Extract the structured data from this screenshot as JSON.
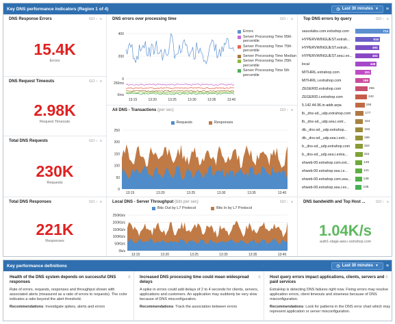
{
  "region1": {
    "title": "Key DNS performance indicators (Region 1 of 4)",
    "time_range": "Last 30 minutes"
  },
  "region2": {
    "title": "Key performance definitions",
    "time_range": "Last 30 minutes"
  },
  "ctrl_go": "GO",
  "kpis": [
    {
      "title": "DNS Response Errors",
      "value": "15.4K",
      "label": "Errors"
    },
    {
      "title": "DNS Request Timeouts",
      "value": "2.98K",
      "label": "Request Timeouts"
    },
    {
      "title": "Total DNS Requests",
      "value": "230K",
      "label": "Requests"
    },
    {
      "title": "Total DNS Responses",
      "value": "221K",
      "label": "Responses"
    }
  ],
  "errors_chart": {
    "title": "DNS errors over processing time",
    "yticks_top": [
      "400",
      "200",
      "0"
    ],
    "yticks_bottom": [
      "250ms",
      "0ms"
    ],
    "xticks": [
      "13:15",
      "13:20",
      "13:25",
      "13:30",
      "13:35",
      "13:40"
    ],
    "legend": [
      {
        "label": "Errors",
        "color": "#5b8fd0"
      },
      {
        "label": "Server Processing Time 95th percentile",
        "color": "#c76dd1"
      },
      {
        "label": "Server Processing Time 75th percentile",
        "color": "#e8664f"
      },
      {
        "label": "Server Processing Time Median",
        "color": "#a5773e"
      },
      {
        "label": "Server Processing Time 25th percentile",
        "color": "#8bb83c"
      },
      {
        "label": "Server Processing Time 5th percentile",
        "color": "#4fae5a"
      }
    ]
  },
  "transactions_chart": {
    "title": "All DNS - Transactions",
    "unit": "(per sec)",
    "legend": [
      {
        "label": "Requests",
        "color": "#4f8cc9"
      },
      {
        "label": "Responses",
        "color": "#c07a45"
      }
    ],
    "yticks": [
      "250",
      "200",
      "150",
      "100",
      "50",
      "0"
    ],
    "xticks": [
      "13:15",
      "13:20",
      "13:25",
      "13:30",
      "13:35",
      "13:40"
    ]
  },
  "throughput_chart": {
    "title": "Local DNS - Server Throughput",
    "unit": "(bits per sec)",
    "legend": [
      {
        "label": "Bits Out by L7 Protocol",
        "color": "#4f8cc9"
      },
      {
        "label": "Bits In by L7 Protocol",
        "color": "#c07a45"
      }
    ],
    "yticks": [
      "250Kb/s",
      "200Kb/s",
      "150Kb/s",
      "100Kb/s",
      "50Kb/s",
      "0b/s"
    ],
    "xticks": [
      "13:15",
      "13:20",
      "13:25",
      "13:30",
      "13:35",
      "13:40"
    ]
  },
  "top_errors": {
    "title": "Top DNS errors by query",
    "max": 714,
    "rows": [
      {
        "label": "saucelabs.com.extrahop.com",
        "value": 714,
        "display": "714",
        "color": "#5b8fd0"
      },
      {
        "label": "HYPERVWINGUEST.extrah...",
        "value": 516,
        "display": "516",
        "color": "#6a5fc8"
      },
      {
        "label": "HYPERVWINGUEST.extrah...",
        "value": 494,
        "display": "494",
        "color": "#7a4fc6"
      },
      {
        "label": "HYPERVWINGUEST.sea.i.ex...",
        "value": 493,
        "display": "493",
        "color": "#8a47c4"
      },
      {
        "label": "local",
        "value": 448,
        "display": "448",
        "color": "#a548c9"
      },
      {
        "label": "MITHRIL.extrahop.com",
        "value": 331,
        "display": "331",
        "color": "#c04ac4"
      },
      {
        "label": "MITHRIL.i.extrahop.com",
        "value": 299,
        "display": "299",
        "color": "#c94b9d"
      },
      {
        "label": "ZEGERID.extrahop.com",
        "value": 255,
        "display": "255",
        "color": "#c84f6f"
      },
      {
        "label": "ZEGERID.i.extrahop.com",
        "value": 242,
        "display": "242",
        "color": "#c85a4a"
      },
      {
        "label": "5.142.44.96.in-addr.arpa",
        "value": 194,
        "display": "194",
        "color": "#c06a44"
      },
      {
        "label": "lb._dns-sd._udp.extrahop.com",
        "value": 177,
        "display": "177",
        "color": "#b07745"
      },
      {
        "label": "lb._dns-sd._udp.sea.i.extr...",
        "value": 164,
        "display": "164",
        "color": "#a58240"
      },
      {
        "label": "db._dns-sd._udp.extrahop...",
        "value": 162,
        "display": "162",
        "color": "#9b8a3c"
      },
      {
        "label": "db._dns-sd._udp.sea.i.extr...",
        "value": 156,
        "display": "156",
        "color": "#939238"
      },
      {
        "label": "b._dns-sd._udp.extrahop.com",
        "value": 154,
        "display": "154",
        "color": "#8a9a35"
      },
      {
        "label": "b._dns-sd._udp.sea.i.extra...",
        "value": 151,
        "display": "151",
        "color": "#7fa236"
      },
      {
        "label": "ehweb-00.extrahop.com.ext...",
        "value": 145,
        "display": "145",
        "color": "#6fa83a"
      },
      {
        "label": "ehweb-00.extrahop.sea.i.e...",
        "value": 141,
        "display": "141",
        "color": "#5fae40"
      },
      {
        "label": "ehweb-00.extrahop.com.sea...",
        "value": 138,
        "display": "138",
        "color": "#52b049"
      },
      {
        "label": "ehweb-00.extrahop.sea.i.ex...",
        "value": 135,
        "display": "135",
        "color": "#48b056"
      }
    ]
  },
  "bandwidth": {
    "title": "DNS bandwidth and Top Host ...",
    "value": "1.04K/s",
    "label": "auth1-stage.aws.i.extrahop.com"
  },
  "definitions": [
    {
      "heading": "Health of the DNS system depends on successful DNS responses",
      "body": "Rate of errors, requests, responses and throughput shown with associated alerts (measured as a ratio of errors to requests). The color indicates a ratio beyond the alert threshold.",
      "rec_label": "Recommendations",
      "rec": ": Investigate spikes, alerts and errors"
    },
    {
      "heading": "Increased DNS processing time could mean widespread delays",
      "body": "A spike in errors could add delays of 2 to 4 seconds for clients, servers, applications and customers. An application may suddenly be very slow because of DNS misconfiguration.",
      "rec_label": "Recommendations",
      "rec": ": Track the association between errors"
    },
    {
      "heading": "Host query errors impact applications, clients, servers and paid services",
      "body": "ExtraHop is detecting DNS failures right now. Fixing errors may resolve application errors, client timeouts and slowness because of DNS misconfiguration.",
      "rec_label": "Recommendations",
      "rec": ": Look for patterns in the DNS error chart which may represent application or server misconfiguration."
    }
  ]
}
